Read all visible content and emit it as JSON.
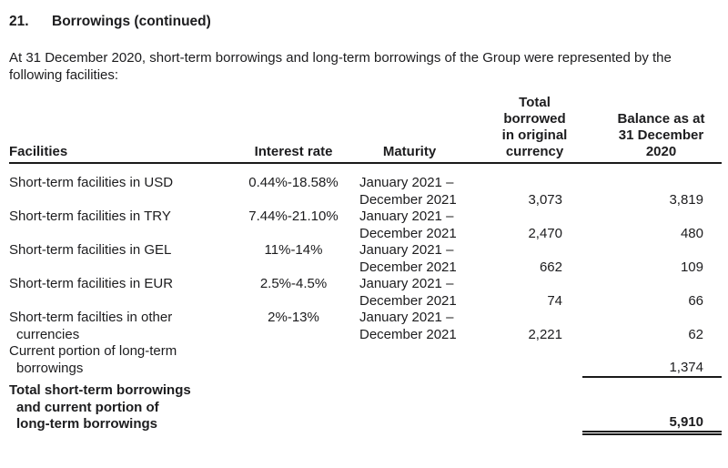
{
  "doc": {
    "section_number": "21.",
    "section_title": "Borrowings (continued)",
    "intro_lines": [
      "At 31 December 2020, short-term borrowings and long-term borrowings of the Group were represented by the",
      "following facilities:"
    ]
  },
  "table": {
    "headers": {
      "facilities": "Facilities",
      "interest_rate": "Interest rate",
      "maturity": "Maturity",
      "total_borrowed_lines": [
        "Total borrowed",
        "in original",
        "currency"
      ],
      "balance_lines": [
        "Balance as at",
        "31 December",
        "2020"
      ]
    },
    "rows": [
      {
        "name": "Short-term facilities in USD",
        "rate": "0.44%-18.58%",
        "maturity": [
          "January 2021 –",
          "December 2021"
        ],
        "borrowed": "3,073",
        "balance": "3,819"
      },
      {
        "name": "Short-term facilities in TRY",
        "rate": "7.44%-21.10%",
        "maturity": [
          "January 2021 –",
          "December 2021"
        ],
        "borrowed": "2,470",
        "balance": "480"
      },
      {
        "name": "Short-term facilities in GEL",
        "rate": "11%-14%",
        "maturity": [
          "January 2021 –",
          "December 2021"
        ],
        "borrowed": "662",
        "balance": "109"
      },
      {
        "name": "Short-term facilities in EUR",
        "rate": "2.5%-4.5%",
        "maturity": [
          "January 2021 –",
          "December 2021"
        ],
        "borrowed": "74",
        "balance": "66"
      },
      {
        "name_lines": [
          "Short-term facilties in other",
          "currencies"
        ],
        "rate": "2%-13%",
        "maturity": [
          "January 2021 –",
          "December 2021"
        ],
        "borrowed": "2,221",
        "balance": "62"
      },
      {
        "name_lines": [
          "Current portion of long-term",
          "borrowings"
        ],
        "balance": "1,374"
      },
      {
        "name_lines": [
          "Total short-term borrowings",
          "and current portion of",
          "long-term borrowings"
        ],
        "balance": "5,910"
      }
    ]
  }
}
